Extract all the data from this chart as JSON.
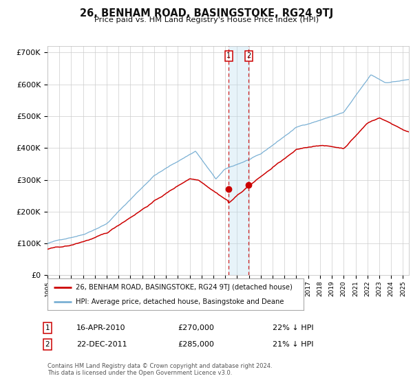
{
  "title": "26, BENHAM ROAD, BASINGSTOKE, RG24 9TJ",
  "subtitle": "Price paid vs. HM Land Registry's House Price Index (HPI)",
  "red_label": "26, BENHAM ROAD, BASINGSTOKE, RG24 9TJ (detached house)",
  "blue_label": "HPI: Average price, detached house, Basingstoke and Deane",
  "red_color": "#cc0000",
  "blue_color": "#7ab0d4",
  "annotation1_date": "16-APR-2010",
  "annotation1_price": "£270,000",
  "annotation1_hpi": "22% ↓ HPI",
  "annotation2_date": "22-DEC-2011",
  "annotation2_price": "£285,000",
  "annotation2_hpi": "21% ↓ HPI",
  "marker1_x": 2010.29,
  "marker1_y": 270000,
  "marker2_x": 2011.98,
  "marker2_y": 285000,
  "vline1_x": 2010.29,
  "vline2_x": 2011.98,
  "footnote": "Contains HM Land Registry data © Crown copyright and database right 2024.\nThis data is licensed under the Open Government Licence v3.0.",
  "ylim": [
    0,
    720000
  ],
  "xlim": [
    1995,
    2025.5
  ],
  "background_color": "#ffffff",
  "grid_color": "#cccccc",
  "yticks": [
    0,
    100000,
    200000,
    300000,
    400000,
    500000,
    600000,
    700000
  ],
  "ytick_labels": [
    "£0",
    "£100K",
    "£200K",
    "£300K",
    "£400K",
    "£500K",
    "£600K",
    "£700K"
  ]
}
